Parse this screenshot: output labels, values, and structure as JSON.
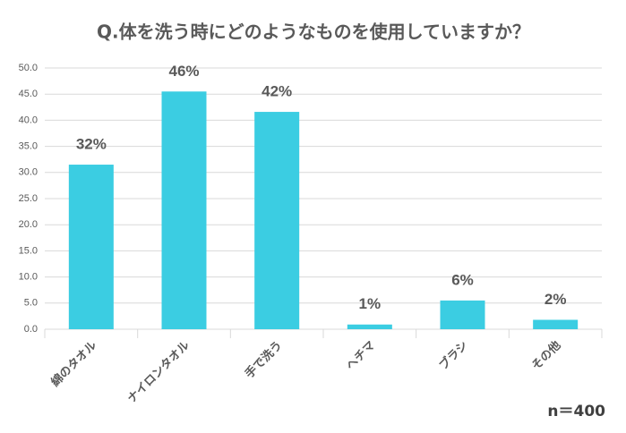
{
  "chart_data": {
    "type": "bar",
    "title": "Q.体を洗う時にどのようなものを使用していますか？",
    "categories": [
      "綿のタオル",
      "ナイロンタオル",
      "手で洗う",
      "ヘチマ",
      "ブラシ",
      "その他"
    ],
    "values": [
      31.5,
      45.5,
      41.6,
      0.9,
      5.5,
      1.8
    ],
    "value_labels": [
      "32%",
      "46%",
      "42%",
      "1%",
      "6%",
      "2%"
    ],
    "color": "#3bcde2",
    "ylim": [
      0,
      50
    ],
    "yticks": [
      {
        "value": 0,
        "label": "0.0"
      },
      {
        "value": 5,
        "label": "5.0"
      },
      {
        "value": 10,
        "label": "10.0"
      },
      {
        "value": 15,
        "label": "15.0"
      },
      {
        "value": 20,
        "label": "20.0"
      },
      {
        "value": 25,
        "label": "25.0"
      },
      {
        "value": 30,
        "label": "30.0"
      },
      {
        "value": 35,
        "label": "35.0"
      },
      {
        "value": 40,
        "label": "40.0"
      },
      {
        "value": 45,
        "label": "45.0"
      },
      {
        "value": 50,
        "label": "50.0"
      }
    ],
    "grid": true,
    "note": "n＝400"
  }
}
